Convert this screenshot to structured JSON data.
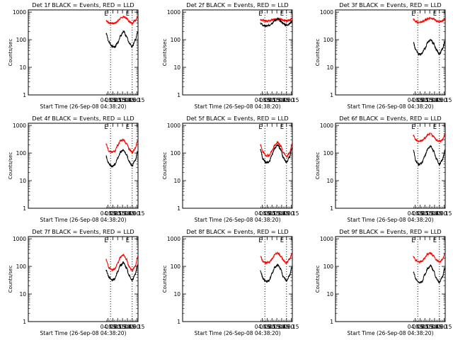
{
  "chart_data": [
    {
      "type": "line",
      "title": "Det 1f BLACK = Events, RED = LLD",
      "xlabel": "Start Time (26-Sep-08 04:38:20)",
      "ylabel": "Counts/sec",
      "x_ticklabels": [
        "04:45",
        "05:00",
        "05:15",
        "05:30",
        "05:45",
        "06:00",
        "06:15"
      ],
      "y_ticklabels": [
        "1",
        "10",
        "100",
        "1000"
      ],
      "ylim": [
        1,
        1200
      ],
      "yscale": "log",
      "x_markers": [
        "04:53",
        "06:00"
      ],
      "marker_labels": [
        "E",
        "E"
      ],
      "series": [
        {
          "color": "#ff0000",
          "x": [
            "04:39",
            "04:48",
            "04:57",
            "05:06",
            "05:15",
            "05:24",
            "05:33",
            "05:42",
            "05:51",
            "06:00",
            "06:09",
            "06:17"
          ],
          "values": [
            500,
            410,
            395,
            400,
            470,
            600,
            680,
            600,
            470,
            400,
            500,
            680
          ]
        },
        {
          "color": "#000000",
          "x": [
            "04:39",
            "04:48",
            "04:57",
            "05:06",
            "05:15",
            "05:24",
            "05:33",
            "05:42",
            "05:51",
            "06:00",
            "06:09",
            "06:17"
          ],
          "values": [
            170,
            80,
            58,
            55,
            78,
            140,
            200,
            135,
            75,
            55,
            95,
            190
          ]
        }
      ]
    },
    {
      "type": "line",
      "title": "Det 2f BLACK = Events, RED = LLD",
      "xlabel": "Start Time (26-Sep-08 04:38:20)",
      "ylabel": "Counts/sec",
      "x_ticklabels": [
        "04:45",
        "05:00",
        "05:15",
        "05:30",
        "05:45",
        "06:00",
        "06:15"
      ],
      "y_ticklabels": [
        "1",
        "10",
        "100",
        "1000"
      ],
      "ylim": [
        1,
        1200
      ],
      "yscale": "log",
      "x_markers": [
        "04:53",
        "06:00"
      ],
      "marker_labels": [
        "E",
        "E"
      ],
      "series": [
        {
          "color": "#ff0000",
          "x": [
            "04:39",
            "04:48",
            "04:57",
            "05:06",
            "05:15",
            "05:24",
            "05:33",
            "05:42",
            "05:51",
            "06:00",
            "06:09",
            "06:17"
          ],
          "values": [
            550,
            500,
            480,
            500,
            520,
            560,
            560,
            540,
            510,
            490,
            520,
            580
          ]
        },
        {
          "color": "#000000",
          "x": [
            "04:39",
            "04:48",
            "04:57",
            "05:06",
            "05:15",
            "05:24",
            "05:33",
            "05:42",
            "05:51",
            "06:00",
            "06:09",
            "06:17"
          ],
          "values": [
            400,
            330,
            310,
            330,
            400,
            500,
            570,
            470,
            380,
            330,
            380,
            480
          ]
        }
      ]
    },
    {
      "type": "line",
      "title": "Det 3f BLACK = Events, RED = LLD",
      "xlabel": "Start Time (26-Sep-08 04:38:20)",
      "ylabel": "Counts/sec",
      "x_ticklabels": [
        "04:45",
        "05:00",
        "05:15",
        "05:30",
        "05:45",
        "06:00",
        "06:15"
      ],
      "y_ticklabels": [
        "1",
        "10",
        "100",
        "1000"
      ],
      "ylim": [
        1,
        1200
      ],
      "yscale": "log",
      "x_markers": [
        "04:53",
        "06:00"
      ],
      "marker_labels": [
        "E",
        "E"
      ],
      "series": [
        {
          "color": "#ff0000",
          "x": [
            "04:39",
            "04:48",
            "04:57",
            "05:06",
            "05:15",
            "05:24",
            "05:33",
            "05:42",
            "05:51",
            "06:00",
            "06:09",
            "06:17"
          ],
          "values": [
            550,
            440,
            420,
            440,
            500,
            580,
            620,
            560,
            480,
            450,
            480,
            560
          ]
        },
        {
          "color": "#000000",
          "x": [
            "04:39",
            "04:48",
            "04:57",
            "05:06",
            "05:15",
            "05:24",
            "05:33",
            "05:42",
            "05:51",
            "06:00",
            "06:09",
            "06:17"
          ],
          "values": [
            80,
            40,
            30,
            32,
            48,
            80,
            100,
            75,
            42,
            30,
            45,
            85
          ]
        }
      ]
    },
    {
      "type": "line",
      "title": "Det 4f BLACK = Events, RED = LLD",
      "xlabel": "Start Time (26-Sep-08 04:38:20)",
      "ylabel": "Counts/sec",
      "x_ticklabels": [
        "04:45",
        "05:00",
        "05:15",
        "05:30",
        "05:45",
        "06:00",
        "06:15"
      ],
      "y_ticklabels": [
        "1",
        "10",
        "100",
        "1000"
      ],
      "ylim": [
        1,
        1200
      ],
      "yscale": "log",
      "x_markers": [
        "04:53",
        "06:00"
      ],
      "marker_labels": [
        "E",
        "E"
      ],
      "series": [
        {
          "color": "#ff0000",
          "x": [
            "04:39",
            "04:48",
            "04:57",
            "05:06",
            "05:15",
            "05:24",
            "05:33",
            "05:42",
            "05:51",
            "06:00",
            "06:09",
            "06:17"
          ],
          "values": [
            220,
            120,
            105,
            120,
            190,
            280,
            300,
            220,
            140,
            105,
            150,
            280
          ]
        },
        {
          "color": "#000000",
          "x": [
            "04:39",
            "04:48",
            "04:57",
            "05:06",
            "05:15",
            "05:24",
            "05:33",
            "05:42",
            "05:51",
            "06:00",
            "06:09",
            "06:17"
          ],
          "values": [
            75,
            40,
            33,
            38,
            65,
            110,
            130,
            90,
            48,
            35,
            55,
            110
          ]
        }
      ]
    },
    {
      "type": "line",
      "title": "Det 5f BLACK = Events, RED = LLD",
      "xlabel": "Start Time (26-Sep-08 04:38:20)",
      "ylabel": "Counts/sec",
      "x_ticklabels": [
        "04:45",
        "05:00",
        "05:15",
        "05:30",
        "05:45",
        "06:00",
        "06:15"
      ],
      "y_ticklabels": [
        "1",
        "10",
        "100",
        "1000"
      ],
      "ylim": [
        1,
        1200
      ],
      "yscale": "log",
      "x_markers": [
        "04:53",
        "06:00"
      ],
      "marker_labels": [
        "E",
        "E"
      ],
      "series": [
        {
          "color": "#ff0000",
          "x": [
            "04:39",
            "04:48",
            "04:57",
            "05:06",
            "05:15",
            "05:24",
            "05:33",
            "05:42",
            "05:51",
            "06:00",
            "06:09",
            "06:17"
          ],
          "values": [
            200,
            105,
            80,
            82,
            120,
            200,
            250,
            180,
            100,
            75,
            100,
            200
          ]
        },
        {
          "color": "#000000",
          "x": [
            "04:39",
            "04:48",
            "04:57",
            "05:06",
            "05:15",
            "05:24",
            "05:33",
            "05:42",
            "05:51",
            "06:00",
            "06:09",
            "06:17"
          ],
          "values": [
            130,
            60,
            45,
            48,
            85,
            150,
            200,
            130,
            65,
            47,
            70,
            150
          ]
        }
      ]
    },
    {
      "type": "line",
      "title": "Det 6f BLACK = Events, RED = LLD",
      "xlabel": "Start Time (26-Sep-08 04:38:20)",
      "ylabel": "Counts/sec",
      "x_ticklabels": [
        "04:45",
        "05:00",
        "05:15",
        "05:30",
        "05:45",
        "06:00",
        "06:15"
      ],
      "y_ticklabels": [
        "1",
        "10",
        "100",
        "1000"
      ],
      "ylim": [
        1,
        1200
      ],
      "yscale": "log",
      "x_markers": [
        "04:53",
        "06:00"
      ],
      "marker_labels": [
        "E",
        "E"
      ],
      "series": [
        {
          "color": "#ff0000",
          "x": [
            "04:39",
            "04:48",
            "04:57",
            "05:06",
            "05:15",
            "05:24",
            "05:33",
            "05:42",
            "05:51",
            "06:00",
            "06:09",
            "06:17"
          ],
          "values": [
            420,
            300,
            270,
            280,
            360,
            460,
            500,
            400,
            300,
            270,
            300,
            450
          ]
        },
        {
          "color": "#000000",
          "x": [
            "04:39",
            "04:48",
            "04:57",
            "05:06",
            "05:15",
            "05:24",
            "05:33",
            "05:42",
            "05:51",
            "06:00",
            "06:09",
            "06:17"
          ],
          "values": [
            130,
            50,
            38,
            45,
            80,
            140,
            175,
            120,
            60,
            40,
            55,
            120
          ]
        }
      ]
    },
    {
      "type": "line",
      "title": "Det 7f BLACK = Events, RED = LLD",
      "xlabel": "Start Time (26-Sep-08 04:38:20)",
      "ylabel": "Counts/sec",
      "x_ticklabels": [
        "04:45",
        "05:00",
        "05:15",
        "05:30",
        "05:45",
        "06:00",
        "06:15"
      ],
      "y_ticklabels": [
        "1",
        "10",
        "100",
        "1000"
      ],
      "ylim": [
        1,
        1200
      ],
      "yscale": "log",
      "x_markers": [
        "04:53",
        "06:00"
      ],
      "marker_labels": [
        "E",
        "E"
      ],
      "series": [
        {
          "color": "#ff0000",
          "x": [
            "04:39",
            "04:48",
            "04:57",
            "05:06",
            "05:15",
            "05:24",
            "05:33",
            "05:42",
            "05:51",
            "06:00",
            "06:09",
            "06:17"
          ],
          "values": [
            180,
            90,
            75,
            80,
            130,
            220,
            260,
            180,
            95,
            72,
            100,
            220
          ]
        },
        {
          "color": "#000000",
          "x": [
            "04:39",
            "04:48",
            "04:57",
            "05:06",
            "05:15",
            "05:24",
            "05:33",
            "05:42",
            "05:51",
            "06:00",
            "06:09",
            "06:17"
          ],
          "values": [
            75,
            40,
            32,
            35,
            65,
            110,
            135,
            90,
            45,
            32,
            50,
            110
          ]
        }
      ]
    },
    {
      "type": "line",
      "title": "Det 8f BLACK = Events, RED = LLD",
      "xlabel": "Start Time (26-Sep-08 04:38:20)",
      "ylabel": "Counts/sec",
      "x_ticklabels": [
        "04:45",
        "05:00",
        "05:15",
        "05:30",
        "05:45",
        "06:00",
        "06:15"
      ],
      "y_ticklabels": [
        "1",
        "10",
        "100",
        "1000"
      ],
      "ylim": [
        1,
        1200
      ],
      "yscale": "log",
      "x_markers": [
        "04:53",
        "06:00"
      ],
      "marker_labels": [
        "E",
        "E"
      ],
      "series": [
        {
          "color": "#ff0000",
          "x": [
            "04:39",
            "04:48",
            "04:57",
            "05:06",
            "05:15",
            "05:24",
            "05:33",
            "05:42",
            "05:51",
            "06:00",
            "06:09",
            "06:17"
          ],
          "values": [
            230,
            150,
            135,
            140,
            185,
            270,
            310,
            240,
            160,
            135,
            180,
            290
          ]
        },
        {
          "color": "#000000",
          "x": [
            "04:39",
            "04:48",
            "04:57",
            "05:06",
            "05:15",
            "05:24",
            "05:33",
            "05:42",
            "05:51",
            "06:00",
            "06:09",
            "06:17"
          ],
          "values": [
            70,
            35,
            28,
            30,
            55,
            95,
            115,
            80,
            40,
            30,
            45,
            95
          ]
        }
      ]
    },
    {
      "type": "line",
      "title": "Det 9f BLACK = Events, RED = LLD",
      "xlabel": "Start Time (26-Sep-08 04:38:20)",
      "ylabel": "Counts/sec",
      "x_ticklabels": [
        "04:45",
        "05:00",
        "05:15",
        "05:30",
        "05:45",
        "06:00",
        "06:15"
      ],
      "y_ticklabels": [
        "1",
        "10",
        "100",
        "1000"
      ],
      "ylim": [
        1,
        1200
      ],
      "yscale": "log",
      "x_markers": [
        "04:53",
        "06:00"
      ],
      "marker_labels": [
        "E",
        "E"
      ],
      "series": [
        {
          "color": "#ff0000",
          "x": [
            "04:39",
            "04:48",
            "04:57",
            "05:06",
            "05:15",
            "05:24",
            "05:33",
            "05:42",
            "05:51",
            "06:00",
            "06:09",
            "06:17"
          ],
          "values": [
            230,
            160,
            145,
            150,
            200,
            280,
            310,
            240,
            165,
            145,
            180,
            290
          ]
        },
        {
          "color": "#000000",
          "x": [
            "04:39",
            "04:48",
            "04:57",
            "05:06",
            "05:15",
            "05:24",
            "05:33",
            "05:42",
            "05:51",
            "06:00",
            "06:09",
            "06:17"
          ],
          "values": [
            65,
            33,
            26,
            28,
            50,
            85,
            105,
            70,
            36,
            27,
            40,
            85
          ]
        }
      ]
    }
  ]
}
